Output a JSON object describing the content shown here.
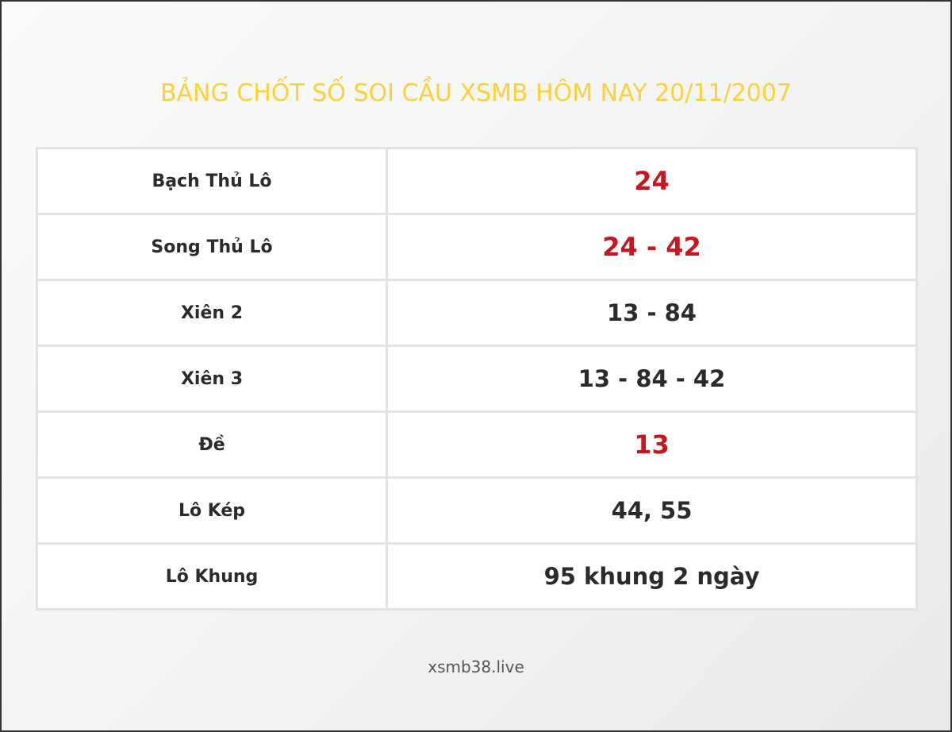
{
  "title": "BẢNG CHỐT SỐ SOI CẦU XSMB HÔM NAY 20/11/2007",
  "accent_color": "#fdd13a",
  "highlight_color": "#c8161d",
  "rows": [
    {
      "label": "Bạch Thủ Lô",
      "value": "24",
      "highlight": true
    },
    {
      "label": "Song Thủ Lô",
      "value": "24 - 42",
      "highlight": true
    },
    {
      "label": "Xiên 2",
      "value": "13 - 84",
      "highlight": false
    },
    {
      "label": "Xiên 3",
      "value": "13 - 84 - 42",
      "highlight": false
    },
    {
      "label": "Đề",
      "value": "13",
      "highlight": true
    },
    {
      "label": "Lô Kép",
      "value": "44, 55",
      "highlight": false
    },
    {
      "label": "Lô Khung",
      "value": "95 khung 2 ngày",
      "highlight": false
    }
  ],
  "footer": "xsmb38.live"
}
